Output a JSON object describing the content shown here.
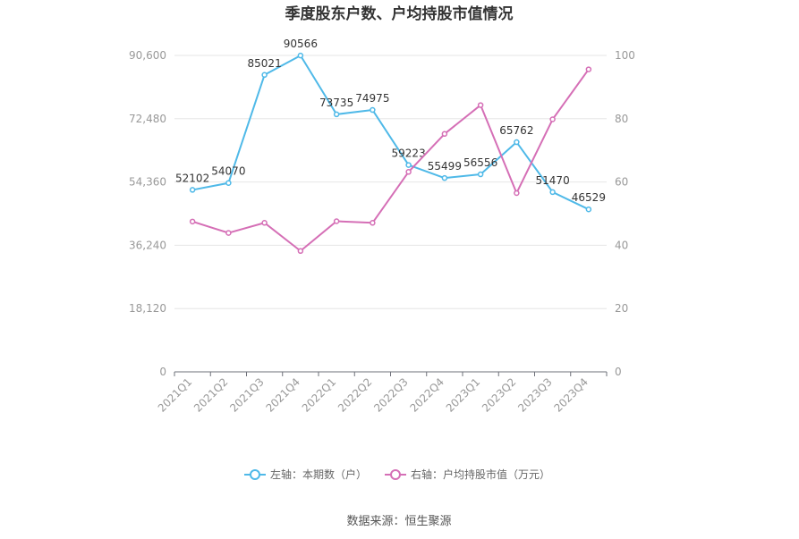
{
  "chart_data": {
    "type": "line",
    "title": "季度股东户数、户均持股市值情况",
    "categories": [
      "2021Q1",
      "2021Q2",
      "2021Q3",
      "2021Q4",
      "2022Q1",
      "2022Q2",
      "2022Q3",
      "2022Q4",
      "2023Q1",
      "2023Q2",
      "2023Q3",
      "2023Q4"
    ],
    "left_axis": {
      "min": 0,
      "max": 90600,
      "ticks": [
        "0",
        "18,120",
        "36,240",
        "54,360",
        "72,480",
        "90,600"
      ]
    },
    "right_axis": {
      "min": 0,
      "max": 100,
      "ticks": [
        "0",
        "20",
        "40",
        "60",
        "80",
        "100"
      ]
    },
    "series": [
      {
        "name": "左轴：本期数（户）",
        "axis": "left",
        "color": "#4fb9e8",
        "values": [
          52102,
          54070,
          85021,
          90566,
          73735,
          74975,
          59223,
          55499,
          56556,
          65762,
          51470,
          46529
        ],
        "labels": [
          "52102",
          "54070",
          "85021",
          "90566",
          "73735",
          "74975",
          "59223",
          "55499",
          "56556",
          "65762",
          "51470",
          "46529"
        ]
      },
      {
        "name": "右轴：户均持股市值（万元）",
        "axis": "right",
        "color": "#d56fb6",
        "values": [
          47.5,
          43.9,
          47.1,
          38.2,
          47.6,
          47.1,
          63.2,
          75.2,
          84.3,
          56.5,
          79.8,
          95.6
        ]
      }
    ],
    "grid": true,
    "legend_position": "bottom",
    "source": "数据来源：恒生聚源"
  }
}
